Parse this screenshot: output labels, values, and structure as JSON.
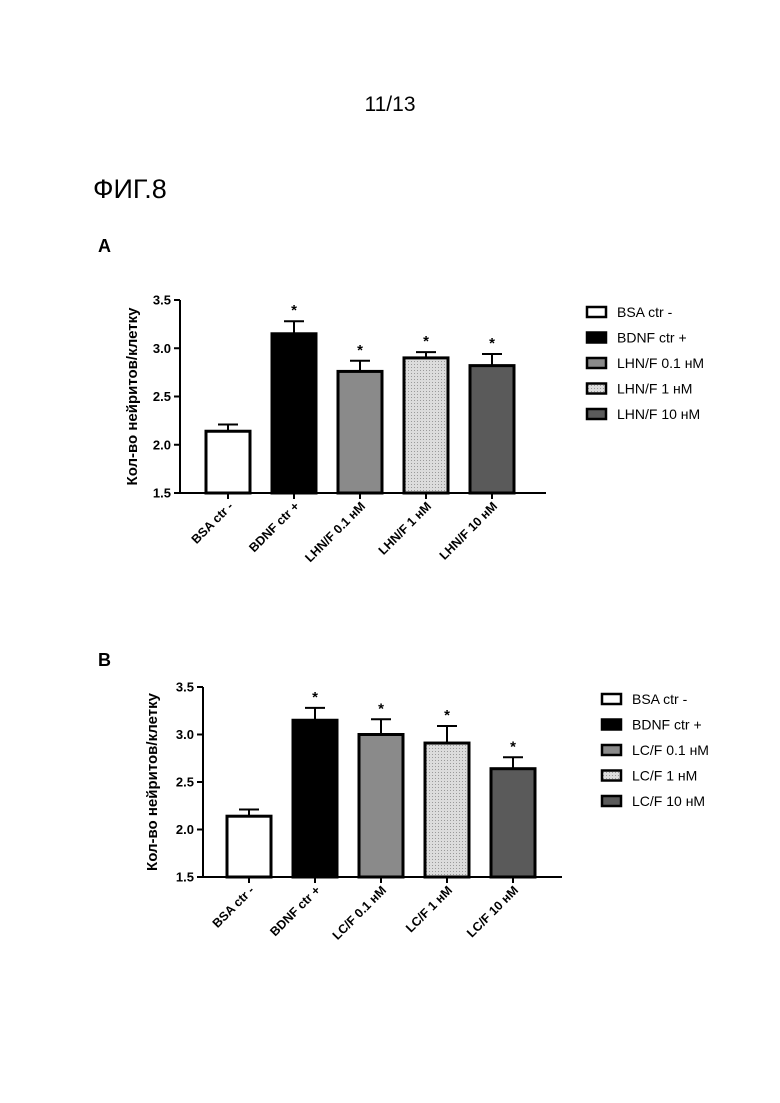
{
  "page_number": "11/13",
  "figure_title": "ФИГ.8",
  "panels": [
    {
      "letter": "A"
    },
    {
      "letter": "B"
    }
  ],
  "chart_data": [
    {
      "type": "bar",
      "panel": "A",
      "ylabel": "Кол-во нейритов/клетку",
      "xlabel": "",
      "ylim": [
        1.5,
        3.5
      ],
      "yticks": [
        "1.5",
        "2.0",
        "2.5",
        "3.0",
        "3.5"
      ],
      "categories": [
        "BSA ctr -",
        "BDNF ctr +",
        "LHN/F 0.1 нМ",
        "LHN/F 1 нМ",
        "LHN/F 10 нМ"
      ],
      "values": [
        2.14,
        3.15,
        2.76,
        2.9,
        2.82
      ],
      "errors": [
        0.07,
        0.13,
        0.11,
        0.06,
        0.12
      ],
      "significance": [
        "",
        "*",
        "*",
        "*",
        "*"
      ],
      "legend": [
        "BSA ctr -",
        "BDNF ctr +",
        "LHN/F 0.1 нМ",
        "LHN/F 1 нМ",
        "LHN/F 10 нМ"
      ],
      "legend_position": "right",
      "colors": [
        "#ffffff",
        "#000000",
        "#8a8a8a",
        "#d2d2d2",
        "#5a5a5a"
      ]
    },
    {
      "type": "bar",
      "panel": "B",
      "ylabel": "Кол-во нейритов/клетку",
      "xlabel": "",
      "ylim": [
        1.5,
        3.5
      ],
      "yticks": [
        "1.5",
        "2.0",
        "2.5",
        "3.0",
        "3.5"
      ],
      "categories": [
        "BSA ctr -",
        "BDNF ctr +",
        "LC/F 0.1 нМ",
        "LC/F 1 нМ",
        "LC/F 10 нМ"
      ],
      "values": [
        2.14,
        3.15,
        3.0,
        2.91,
        2.64
      ],
      "errors": [
        0.07,
        0.13,
        0.16,
        0.18,
        0.12
      ],
      "significance": [
        "",
        "*",
        "*",
        "*",
        "*"
      ],
      "legend": [
        "BSA ctr -",
        "BDNF ctr +",
        "LC/F 0.1 нМ",
        "LC/F 1 нМ",
        "LC/F 10 нМ"
      ],
      "legend_position": "right",
      "colors": [
        "#ffffff",
        "#000000",
        "#8a8a8a",
        "#d2d2d2",
        "#5a5a5a"
      ]
    }
  ]
}
